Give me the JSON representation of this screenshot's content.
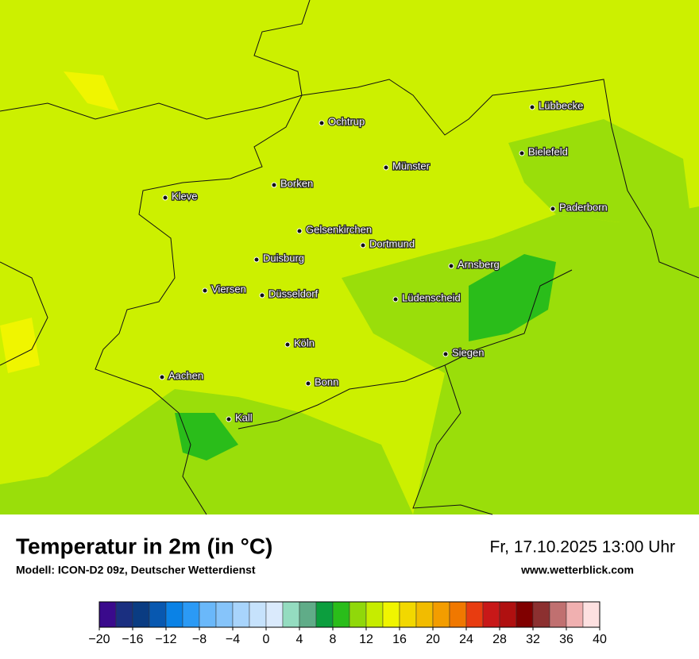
{
  "map": {
    "cities": [
      "Lübbecke",
      "Ochtrup",
      "Bielefeld",
      "Münster",
      "Borken",
      "Kleve",
      "Paderborn",
      "Gelsenkirchen",
      "Dortmund",
      "Duisburg",
      "Arnsberg",
      "Viersen",
      "Düsseldorf",
      "Lüdenscheid",
      "Köln",
      "Siegen",
      "Aachen",
      "Bonn",
      "Kall"
    ]
  },
  "footer": {
    "title": "Temperatur in 2m (in °C)",
    "model": "Modell: ICON-D2 09z, Deutscher Wetterdienst",
    "datetime": "Fr, 17.10.2025 13:00 Uhr",
    "website": "www.wetterblick.com"
  },
  "colorbar": {
    "lim": [
      -20,
      40
    ],
    "colors": [
      "#3a0a8c",
      "#1a2f80",
      "#0a3c82",
      "#0858b0",
      "#0a82e6",
      "#2b9af5",
      "#6ab8fa",
      "#86c4fa",
      "#a8d4fc",
      "#c6e2fc",
      "#daeafc",
      "#94dcc0",
      "#60ac88",
      "#0c9e3e",
      "#2abd1a",
      "#90d80a",
      "#c6ec00",
      "#f0f500",
      "#f2d800",
      "#f2bc00",
      "#f39d00",
      "#f07800",
      "#e83c10",
      "#c81818",
      "#b01010",
      "#800000",
      "#8c3030",
      "#c07070",
      "#f0b0b0",
      "#fde0e0"
    ],
    "ticks": [
      {
        "value": -20,
        "label": "−20"
      },
      {
        "value": -16,
        "label": "−16"
      },
      {
        "value": -12,
        "label": "−12"
      },
      {
        "value": -8,
        "label": "−8"
      },
      {
        "value": -4,
        "label": "−4"
      },
      0,
      4,
      8,
      12,
      16,
      20,
      24,
      28,
      32,
      36,
      40
    ]
  }
}
